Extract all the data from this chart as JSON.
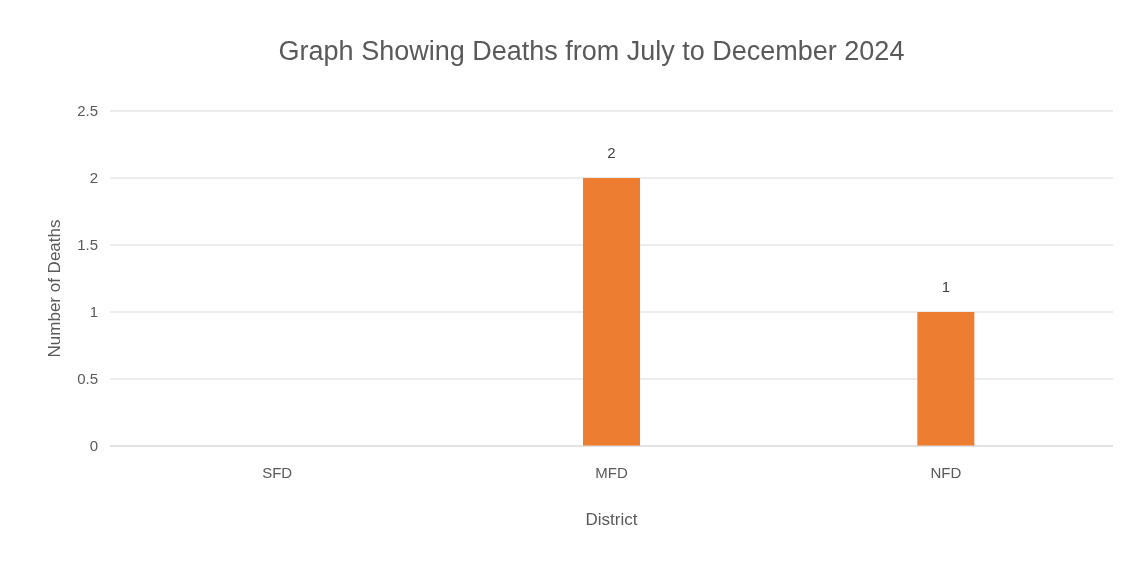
{
  "chart_data": {
    "type": "bar",
    "title": "Graph Showing Deaths from July to December 2024",
    "xlabel": "District",
    "ylabel": "Number of Deaths",
    "categories": [
      "SFD",
      "MFD",
      "NFD"
    ],
    "values": [
      0,
      2,
      1
    ],
    "color": "#ed7d31",
    "value_labels": [
      null,
      "2",
      "1"
    ],
    "ylim": [
      0,
      2.5
    ],
    "yticks": [
      0,
      0.5,
      1,
      1.5,
      2,
      2.5
    ],
    "grid": "y"
  }
}
